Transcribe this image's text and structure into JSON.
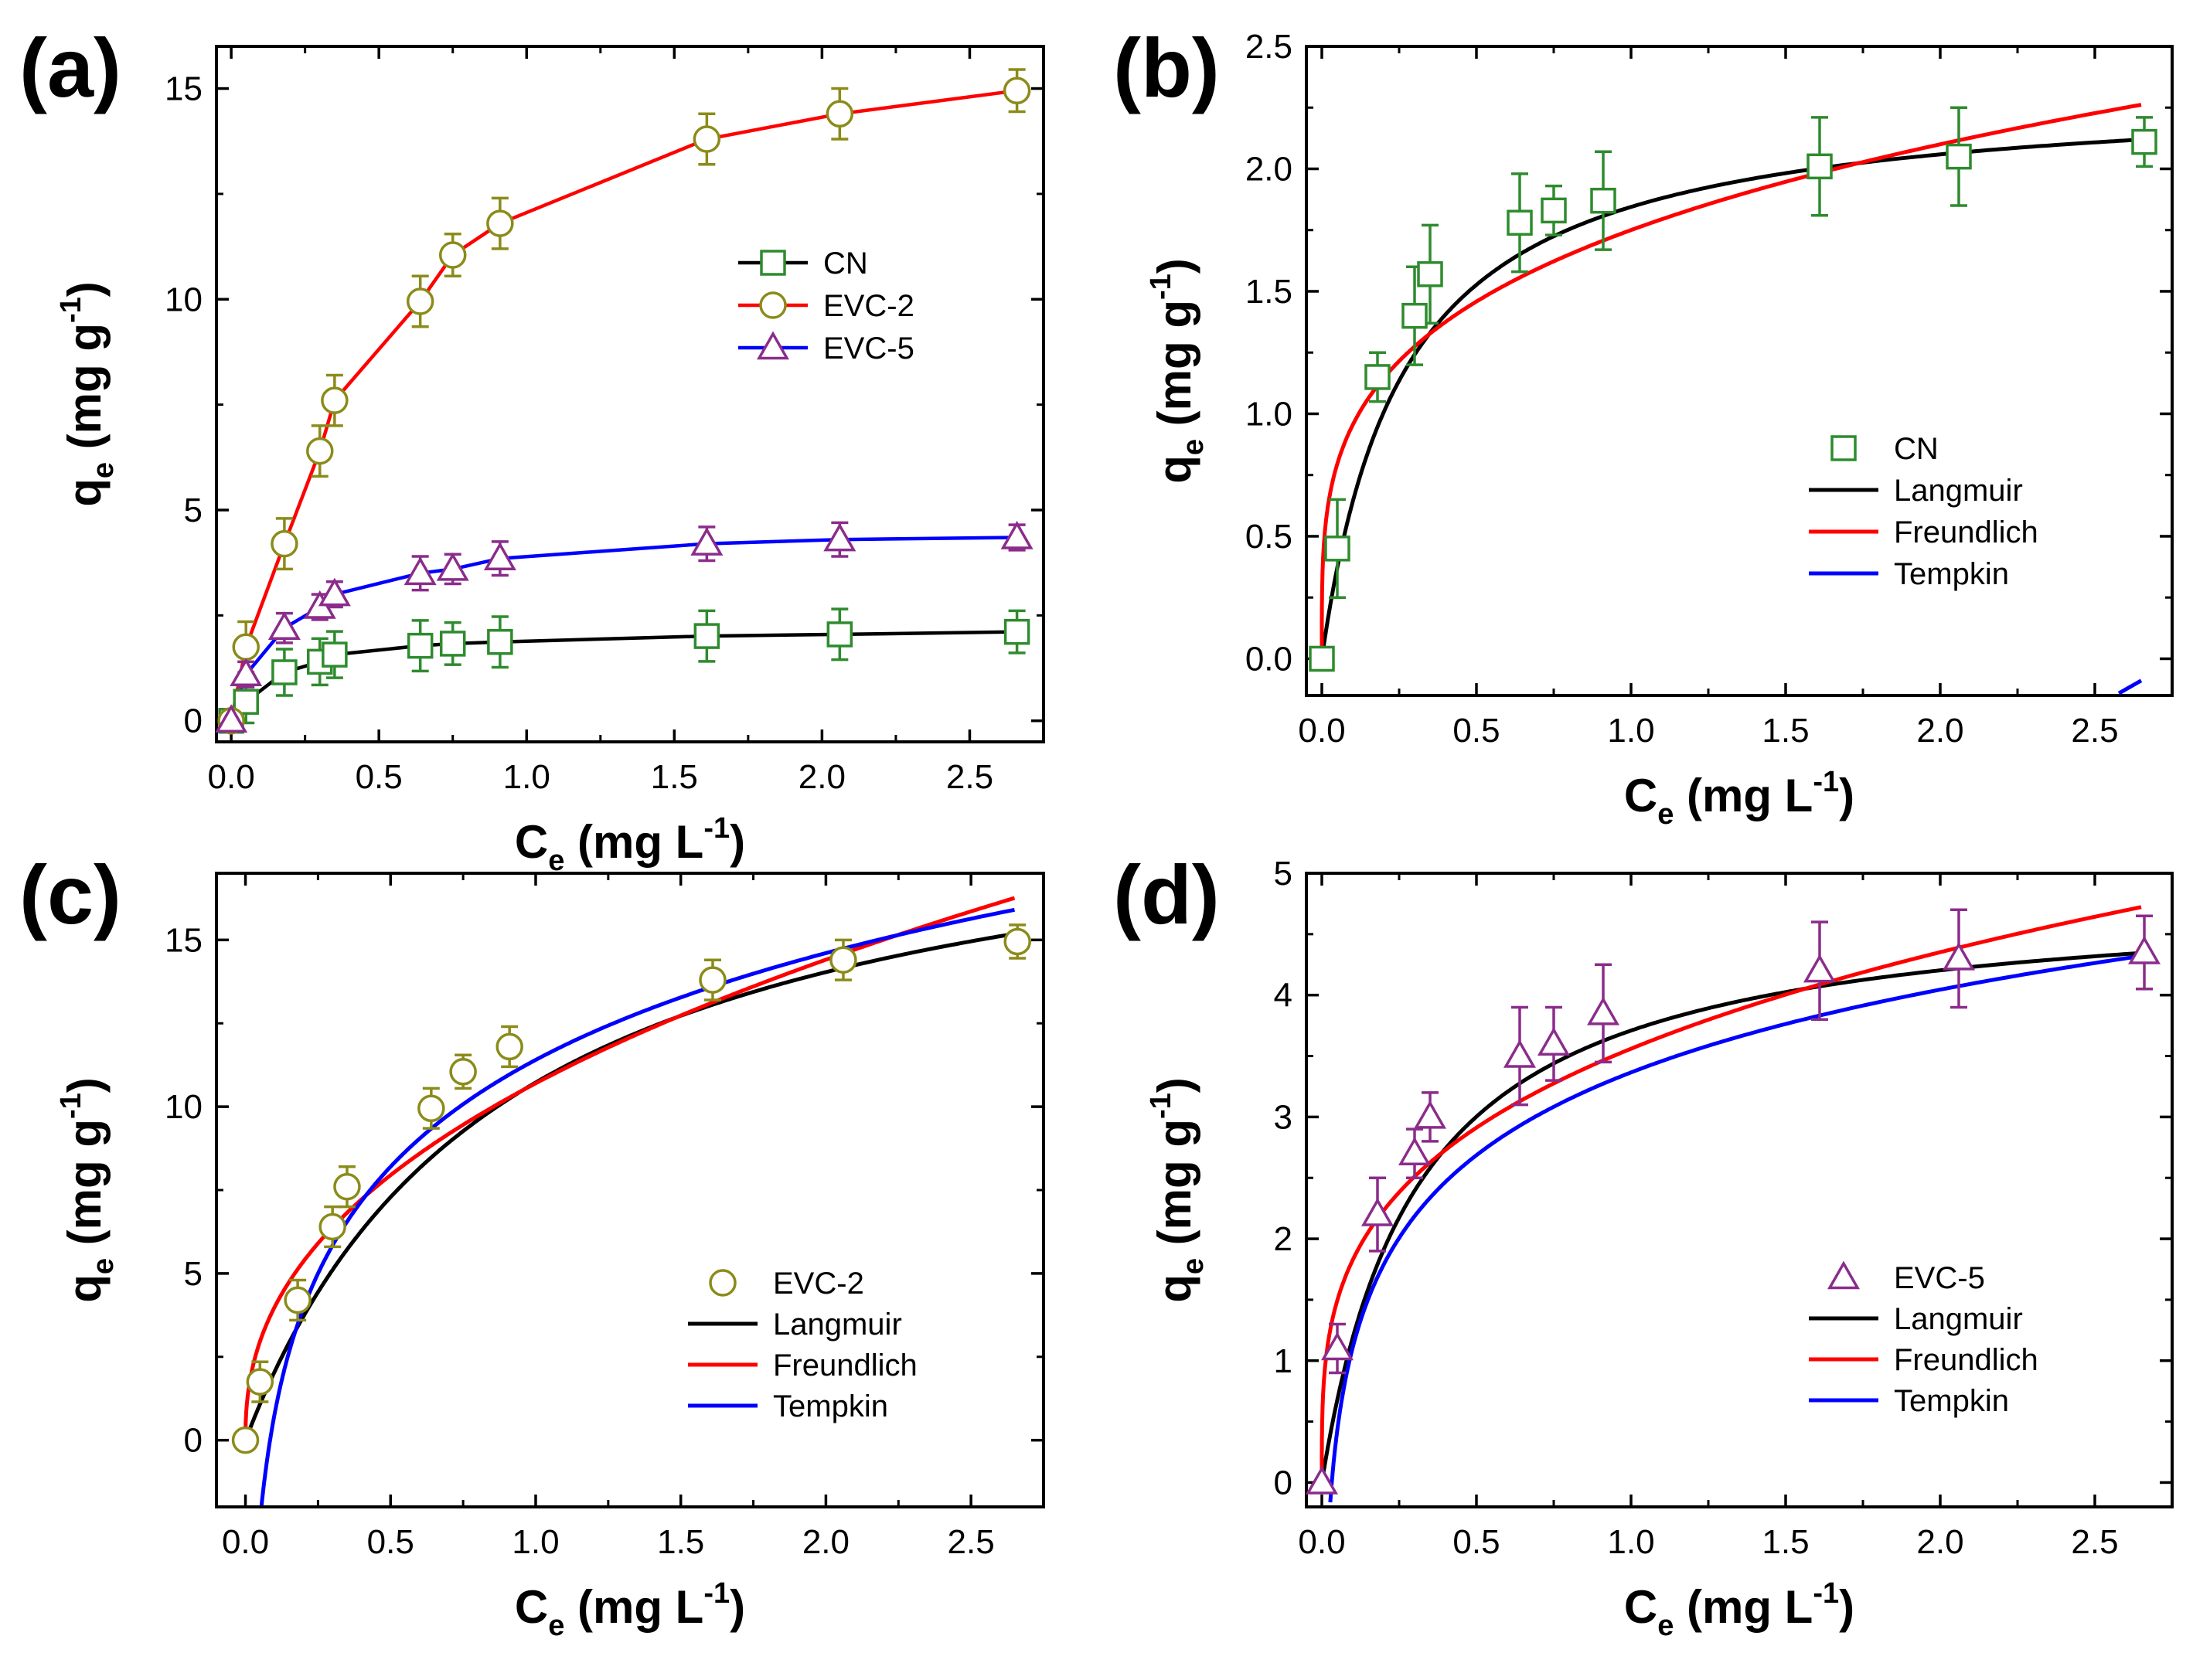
{
  "chart_data": [
    {
      "panel_label": "(a)",
      "type": "line",
      "xlabel": {
        "main": "C",
        "sub": "e",
        "unit": "(mg L",
        "sup": "-1",
        "close": ")"
      },
      "ylabel": {
        "main": "q",
        "sub": "e",
        "unit": "(mg g",
        "sup": "-1",
        "close": ")"
      },
      "xlim": [
        -0.05,
        2.75
      ],
      "ylim": [
        -0.5,
        16.0
      ],
      "xticks": [
        0.0,
        0.5,
        1.0,
        1.5,
        2.0,
        2.5
      ],
      "xtick_labels": [
        "0.0",
        "0.5",
        "1.0",
        "1.5",
        "2.0",
        "2.5"
      ],
      "yticks": [
        0,
        5,
        10,
        15
      ],
      "ytick_labels": [
        "0",
        "5",
        "10",
        "15"
      ],
      "legend_position": "center-right",
      "series": [
        {
          "name": "CN",
          "kind": "data",
          "marker": "square",
          "line": true,
          "color": "#000000",
          "marker_color": "#2e8b2e",
          "error_color": "#2e8b2e",
          "x": [
            0,
            0.05,
            0.18,
            0.3,
            0.35,
            0.64,
            0.75,
            0.91,
            1.61,
            2.06,
            2.66
          ],
          "y": [
            0,
            0.45,
            1.15,
            1.4,
            1.57,
            1.78,
            1.83,
            1.87,
            2.01,
            2.05,
            2.11
          ],
          "err": [
            0,
            0.5,
            0.55,
            0.55,
            0.55,
            0.6,
            0.5,
            0.6,
            0.6,
            0.6,
            0.5
          ]
        },
        {
          "name": "EVC-2",
          "kind": "data",
          "marker": "circle",
          "line": true,
          "color": "#ff0000",
          "marker_color": "#8b8b1a",
          "error_color": "#8b8b1a",
          "x": [
            0,
            0.05,
            0.18,
            0.3,
            0.35,
            0.64,
            0.75,
            0.91,
            1.61,
            2.06,
            2.66
          ],
          "y": [
            0,
            1.75,
            4.2,
            6.4,
            7.6,
            9.95,
            11.05,
            11.8,
            13.8,
            14.4,
            14.95
          ],
          "err": [
            0,
            0.6,
            0.6,
            0.6,
            0.6,
            0.6,
            0.5,
            0.6,
            0.6,
            0.6,
            0.5
          ]
        },
        {
          "name": "EVC-5",
          "kind": "data",
          "marker": "triangle",
          "line": true,
          "color": "#0000ff",
          "marker_color": "#8b2c8b",
          "error_color": "#8b2c8b",
          "x": [
            0,
            0.05,
            0.18,
            0.3,
            0.35,
            0.64,
            0.75,
            0.91,
            1.61,
            2.06,
            2.66
          ],
          "y": [
            0,
            1.1,
            2.2,
            2.7,
            3.0,
            3.5,
            3.6,
            3.85,
            4.2,
            4.3,
            4.35
          ],
          "err": [
            0,
            0.3,
            0.35,
            0.3,
            0.3,
            0.4,
            0.35,
            0.4,
            0.4,
            0.4,
            0.3
          ]
        }
      ]
    },
    {
      "panel_label": "(b)",
      "type": "scatter",
      "xlabel": {
        "main": "C",
        "sub": "e",
        "unit": "(mg L",
        "sup": "-1",
        "close": ")"
      },
      "ylabel": {
        "main": "q",
        "sub": "e",
        "unit": "(mg g",
        "sup": "-1",
        "close": ")"
      },
      "xlim": [
        -0.05,
        2.75
      ],
      "ylim": [
        -0.15,
        2.5
      ],
      "xticks": [
        0.0,
        0.5,
        1.0,
        1.5,
        2.0,
        2.5
      ],
      "xtick_labels": [
        "0.0",
        "0.5",
        "1.0",
        "1.5",
        "2.0",
        "2.5"
      ],
      "yticks": [
        0.0,
        0.5,
        1.0,
        1.5,
        2.0,
        2.5
      ],
      "ytick_labels": [
        "0.0",
        "0.5",
        "1.0",
        "1.5",
        "2.0",
        "2.5"
      ],
      "legend_position": "bottom-right",
      "series": [
        {
          "name": "CN",
          "kind": "data",
          "marker": "square",
          "marker_color": "#2e8b2e",
          "error_color": "#2e8b2e",
          "x": [
            0,
            0.05,
            0.18,
            0.3,
            0.35,
            0.64,
            0.75,
            0.91,
            1.61,
            2.06,
            2.66
          ],
          "y": [
            0,
            0.45,
            1.15,
            1.4,
            1.57,
            1.78,
            1.83,
            1.87,
            2.01,
            2.05,
            2.11
          ],
          "err": [
            0,
            0.2,
            0.1,
            0.2,
            0.2,
            0.2,
            0.1,
            0.2,
            0.2,
            0.2,
            0.1
          ]
        },
        {
          "name": "Langmuir",
          "kind": "fit",
          "model": "langmuir",
          "params": {
            "qm": 2.33,
            "KL": 3.8
          },
          "color": "#000000"
        },
        {
          "name": "Freundlich",
          "kind": "fit",
          "model": "freundlich",
          "params": {
            "KF": 1.75,
            "n": 3.8
          },
          "color": "#ff0000"
        },
        {
          "name": "Tempkin",
          "kind": "fit",
          "model": "tempkin",
          "params": {
            "A": 0.36,
            "B": 1.89
          },
          "color": "#0000ff"
        }
      ]
    },
    {
      "panel_label": "(c)",
      "type": "scatter",
      "xlabel": {
        "main": "C",
        "sub": "e",
        "unit": "(mg L",
        "sup": "-1",
        "close": ")"
      },
      "ylabel": {
        "main": "q",
        "sub": "e",
        "unit": "(mg g",
        "sup": "-1",
        "close": ")"
      },
      "xlim": [
        -0.1,
        2.75
      ],
      "ylim": [
        -2.0,
        17.0
      ],
      "xticks": [
        0.0,
        0.5,
        1.0,
        1.5,
        2.0,
        2.5
      ],
      "xtick_labels": [
        "0.0",
        "0.5",
        "1.0",
        "1.5",
        "2.0",
        "2.5"
      ],
      "yticks": [
        0,
        5,
        10,
        15
      ],
      "ytick_labels": [
        "0",
        "5",
        "10",
        "15"
      ],
      "legend_position": "bottom-right",
      "series": [
        {
          "name": "EVC-2",
          "kind": "data",
          "marker": "circle",
          "marker_color": "#8b8b1a",
          "error_color": "#8b8b1a",
          "x": [
            0,
            0.05,
            0.18,
            0.3,
            0.35,
            0.64,
            0.75,
            0.91,
            1.61,
            2.06,
            2.66
          ],
          "y": [
            0,
            1.75,
            4.2,
            6.4,
            7.6,
            9.95,
            11.05,
            11.8,
            13.8,
            14.4,
            14.95
          ],
          "err": [
            0,
            0.6,
            0.6,
            0.6,
            0.6,
            0.6,
            0.5,
            0.6,
            0.6,
            0.6,
            0.5
          ]
        },
        {
          "name": "Langmuir",
          "kind": "fit",
          "model": "langmuir",
          "params": {
            "qm": 20.3,
            "KL": 1.12
          },
          "color": "#000000"
        },
        {
          "name": "Freundlich",
          "kind": "fit",
          "model": "freundlich",
          "params": {
            "KF": 10.7,
            "n": 2.33
          },
          "color": "#ff0000"
        },
        {
          "name": "Tempkin",
          "kind": "fit",
          "model": "tempkin",
          "params": {
            "A": 11.8,
            "B": 4.62
          },
          "color": "#0000ff"
        }
      ]
    },
    {
      "panel_label": "(d)",
      "type": "scatter",
      "xlabel": {
        "main": "C",
        "sub": "e",
        "unit": "(mg L",
        "sup": "-1",
        "close": ")"
      },
      "ylabel": {
        "main": "q",
        "sub": "e",
        "unit": "(mg g",
        "sup": "-1",
        "close": ")"
      },
      "xlim": [
        -0.05,
        2.75
      ],
      "ylim": [
        -0.2,
        5.0
      ],
      "xticks": [
        0.0,
        0.5,
        1.0,
        1.5,
        2.0,
        2.5
      ],
      "xtick_labels": [
        "0.0",
        "0.5",
        "1.0",
        "1.5",
        "2.0",
        "2.5"
      ],
      "yticks": [
        0,
        1,
        2,
        3,
        4,
        5
      ],
      "ytick_labels": [
        "0",
        "1",
        "2",
        "3",
        "4",
        "5"
      ],
      "legend_position": "bottom-right",
      "series": [
        {
          "name": "EVC-5",
          "kind": "data",
          "marker": "triangle",
          "marker_color": "#8b2c8b",
          "error_color": "#8b2c8b",
          "x": [
            0,
            0.05,
            0.18,
            0.3,
            0.35,
            0.64,
            0.75,
            0.91,
            1.61,
            2.06,
            2.66
          ],
          "y": [
            0,
            1.1,
            2.2,
            2.7,
            3.0,
            3.5,
            3.6,
            3.85,
            4.2,
            4.3,
            4.35
          ],
          "err": [
            0,
            0.2,
            0.3,
            0.2,
            0.2,
            0.4,
            0.3,
            0.4,
            0.4,
            0.4,
            0.3
          ]
        },
        {
          "name": "Langmuir",
          "kind": "fit",
          "model": "langmuir",
          "params": {
            "qm": 4.85,
            "KL": 3.25
          },
          "color": "#000000"
        },
        {
          "name": "Freundlich",
          "kind": "fit",
          "model": "freundlich",
          "params": {
            "KF": 3.56,
            "n": 3.45
          },
          "color": "#ff0000"
        },
        {
          "name": "Tempkin",
          "kind": "fit",
          "model": "tempkin",
          "params": {
            "A": 31.0,
            "B": 0.98
          },
          "color": "#0000ff"
        }
      ]
    }
  ]
}
